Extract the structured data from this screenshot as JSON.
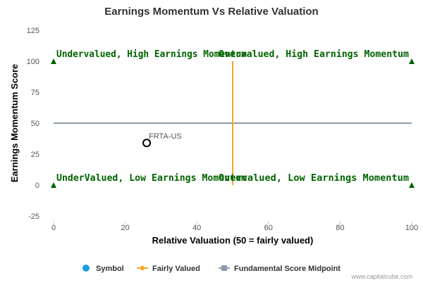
{
  "chart_data": {
    "type": "scatter",
    "title": "Earnings Momentum Vs Relative Valuation",
    "xlabel": "Relative Valuation (50 = fairly valued)",
    "ylabel": "Earnings Momentum Score",
    "xlim": [
      0,
      100
    ],
    "ylim": [
      -25,
      125
    ],
    "x_ticks": [
      0,
      20,
      40,
      60,
      80,
      100
    ],
    "y_ticks": [
      125,
      100,
      75,
      50,
      25,
      0,
      -25
    ],
    "grid": false,
    "legend_position": "bottom",
    "series": [
      {
        "name": "Symbol",
        "points": [
          {
            "label": "FRTA-US",
            "x": 26,
            "y": 34
          }
        ]
      }
    ],
    "fairly_valued_x": 50,
    "midpoint_y": 50,
    "quadrant_labels": [
      {
        "text": "Undervalued, High Earnings Momentum",
        "x": 0,
        "y": 100
      },
      {
        "text": "Overvalued, High Earnings Momentum",
        "x": 100,
        "y": 100
      },
      {
        "text": "UnderValued, Low Earnings Momentum",
        "x": 0,
        "y": 0
      },
      {
        "text": "Overvalued, Low Earnings Momentum",
        "x": 100,
        "y": 0
      }
    ],
    "corner_markers": [
      {
        "x": 0,
        "y": 100
      },
      {
        "x": 100,
        "y": 100
      },
      {
        "x": 0,
        "y": 0
      },
      {
        "x": 100,
        "y": 0
      }
    ],
    "legend": [
      {
        "label": "Symbol",
        "icon": "circle-marker",
        "color": "#1a9be6"
      },
      {
        "label": "Fairly Valued",
        "icon": "diamond-line-marker",
        "color": "#f5a623"
      },
      {
        "label": "Fundamental Score Midpoint",
        "icon": "square-line-marker",
        "color": "#8a9aaa"
      }
    ],
    "colors": {
      "fairly_valued_line": "#f5a623",
      "midpoint_line": "#8a9aaa",
      "quadrant_text": "#006400",
      "marker": "#006400",
      "point_stroke": "#000000"
    }
  },
  "credit": "www.capitalcube.com"
}
